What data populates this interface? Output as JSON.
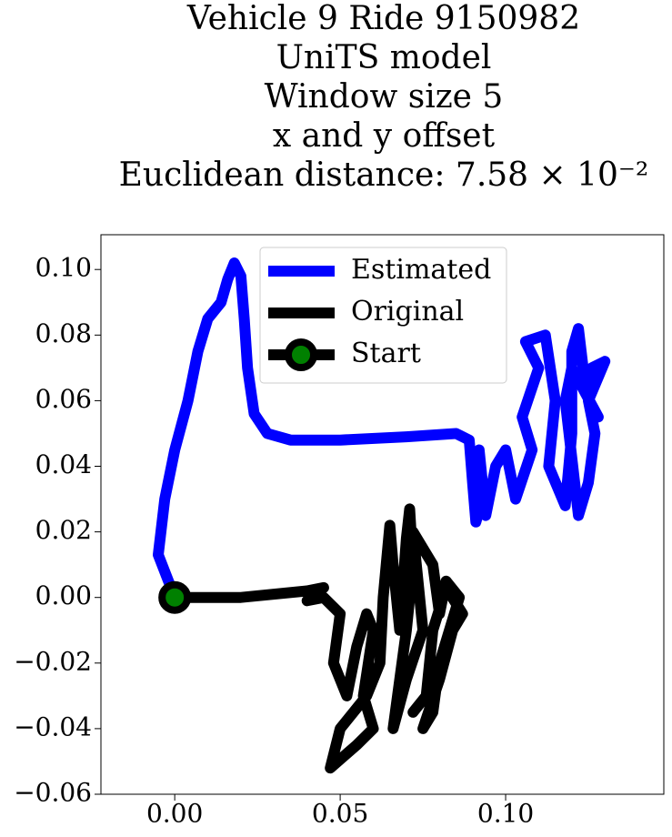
{
  "chart_data": {
    "type": "line",
    "title": [
      "Vehicle 9 Ride 9150982",
      "UniTS model",
      "Window size 5",
      "x and y offset",
      "Euclidean distance: 7.58 × 10⁻²"
    ],
    "xlim": [
      -0.0223,
      0.1478
    ],
    "ylim": [
      -0.06,
      0.1106
    ],
    "xticks": [
      {
        "value": 0,
        "label": "0.00"
      },
      {
        "value": 0.05,
        "label": "0.05"
      },
      {
        "value": 0.1,
        "label": "0.10"
      }
    ],
    "yticks": [
      {
        "value": -0.06,
        "label": "−0.06"
      },
      {
        "value": -0.04,
        "label": "−0.04"
      },
      {
        "value": -0.02,
        "label": "−0.02"
      },
      {
        "value": 0,
        "label": "0.00"
      },
      {
        "value": 0.02,
        "label": "0.02"
      },
      {
        "value": 0.04,
        "label": "0.04"
      },
      {
        "value": 0.06,
        "label": "0.06"
      },
      {
        "value": 0.08,
        "label": "0.08"
      },
      {
        "value": 0.1,
        "label": "0.10"
      }
    ],
    "grid": false,
    "legend": "upper center",
    "series": [
      {
        "name": "Estimated",
        "color": "#0000ff",
        "x": [
          0,
          -0.005,
          -0.003,
          0,
          0.004,
          0.007,
          0.01,
          0.014,
          0.016,
          0.018,
          0.02,
          0.021,
          0.022,
          0.024,
          0.028,
          0.035,
          0.05,
          0.07,
          0.085,
          0.089,
          0.09,
          0.091,
          0.093,
          0.092,
          0.094,
          0.097,
          0.1,
          0.103,
          0.108,
          0.105,
          0.11,
          0.106,
          0.112,
          0.115,
          0.113,
          0.118,
          0.12,
          0.12,
          0.122,
          0.124,
          0.126,
          0.13,
          0.125,
          0.127,
          0.125,
          0.122,
          0.118,
          0.12,
          0.128
        ],
        "values": [
          0,
          0.013,
          0.03,
          0.045,
          0.06,
          0.075,
          0.085,
          0.09,
          0.097,
          0.102,
          0.098,
          0.085,
          0.07,
          0.056,
          0.05,
          0.048,
          0.048,
          0.049,
          0.05,
          0.048,
          0.035,
          0.023,
          0.03,
          0.045,
          0.025,
          0.04,
          0.045,
          0.03,
          0.045,
          0.055,
          0.07,
          0.078,
          0.08,
          0.06,
          0.04,
          0.028,
          0.05,
          0.075,
          0.082,
          0.065,
          0.07,
          0.072,
          0.06,
          0.05,
          0.035,
          0.025,
          0.06,
          0.07,
          0.055
        ]
      },
      {
        "name": "Original",
        "color": "#000000",
        "x": [
          0,
          0.02,
          0.04,
          0.045,
          0.04,
          0.045,
          0.05,
          0.048,
          0.052,
          0.055,
          0.058,
          0.06,
          0.057,
          0.06,
          0.055,
          0.047,
          0.05,
          0.058,
          0.062,
          0.063,
          0.065,
          0.066,
          0.068,
          0.07,
          0.071,
          0.072,
          0.07,
          0.068,
          0.066,
          0.07,
          0.075,
          0.072,
          0.078,
          0.08,
          0.082,
          0.086,
          0.08,
          0.078,
          0.075,
          0.08,
          0.084,
          0.087,
          0.082,
          0.078,
          0.076,
          0.072
        ],
        "values": [
          0,
          0,
          0.002,
          0.003,
          -0.001,
          0,
          -0.005,
          -0.02,
          -0.03,
          -0.015,
          -0.005,
          -0.01,
          -0.03,
          -0.04,
          -0.045,
          -0.052,
          -0.04,
          -0.03,
          -0.02,
          0,
          0.022,
          0.01,
          -0.01,
          0.018,
          0.027,
          0.01,
          -0.01,
          -0.025,
          -0.04,
          -0.025,
          -0.01,
          0.02,
          0.01,
          -0.005,
          0.005,
          0,
          -0.02,
          -0.035,
          -0.04,
          -0.025,
          -0.01,
          -0.005,
          0.003,
          -0.01,
          -0.03,
          -0.035
        ]
      },
      {
        "name": "Start",
        "color": "#000000",
        "marker_color": "#008000",
        "x": [
          0
        ],
        "values": [
          0
        ]
      }
    ]
  }
}
